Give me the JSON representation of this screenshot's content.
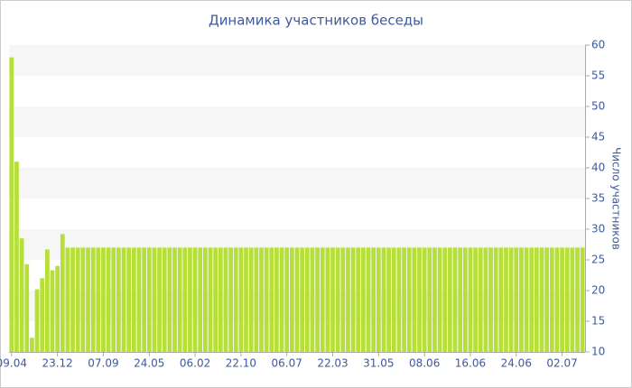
{
  "chart_data": {
    "type": "bar",
    "title": "Динамика участников беседы",
    "y_label": "Число участников",
    "categories": [
      "09.04",
      null,
      null,
      null,
      null,
      null,
      null,
      null,
      null,
      "23.12",
      null,
      null,
      null,
      null,
      null,
      null,
      null,
      null,
      "07.09",
      null,
      null,
      null,
      null,
      null,
      null,
      null,
      null,
      "24.05",
      null,
      null,
      null,
      null,
      null,
      null,
      null,
      null,
      "06.02",
      null,
      null,
      null,
      null,
      null,
      null,
      null,
      null,
      "22.10",
      null,
      null,
      null,
      null,
      null,
      null,
      null,
      null,
      "06.07",
      null,
      null,
      null,
      null,
      null,
      null,
      null,
      null,
      "22.03",
      null,
      null,
      null,
      null,
      null,
      null,
      null,
      null,
      "31.05",
      null,
      null,
      null,
      null,
      null,
      null,
      null,
      null,
      "08.06",
      null,
      null,
      null,
      null,
      null,
      null,
      null,
      null,
      "16.06",
      null,
      null,
      null,
      null,
      null,
      null,
      null,
      null,
      "24.06",
      null,
      null,
      null,
      null,
      null,
      null,
      null,
      null,
      "02.07",
      null,
      null,
      null,
      null
    ],
    "values": [
      58,
      41,
      28.5,
      24.3,
      12.3,
      20.2,
      22,
      26.7,
      23.3,
      24,
      29.2,
      27,
      27,
      27,
      27,
      27,
      27,
      27,
      27,
      27,
      27,
      27,
      27,
      27,
      27,
      27,
      27,
      27,
      27,
      27,
      27,
      27,
      27,
      27,
      27,
      27,
      27,
      27,
      27,
      27,
      27,
      27,
      27,
      27,
      27,
      27,
      27,
      27,
      27,
      27,
      27,
      27,
      27,
      27,
      27,
      27,
      27,
      27,
      27,
      27,
      27,
      27,
      27,
      27,
      27,
      27,
      27,
      27,
      27,
      27,
      27,
      27,
      27,
      27,
      27,
      27,
      27,
      27,
      27,
      27,
      27,
      27,
      27,
      27,
      27,
      27,
      27,
      27,
      27,
      27,
      27,
      27,
      27,
      27,
      27,
      27,
      27,
      27,
      27,
      27,
      27,
      27,
      27,
      27,
      27,
      27,
      27,
      27,
      27,
      27,
      27,
      27,
      27
    ],
    "color": "#b6df38",
    "ylim": [
      10,
      60
    ],
    "yticks": [
      10,
      15,
      20,
      25,
      30,
      35,
      40,
      45,
      50,
      55,
      60
    ],
    "banded_grid": true,
    "y_axis_side": "right"
  }
}
